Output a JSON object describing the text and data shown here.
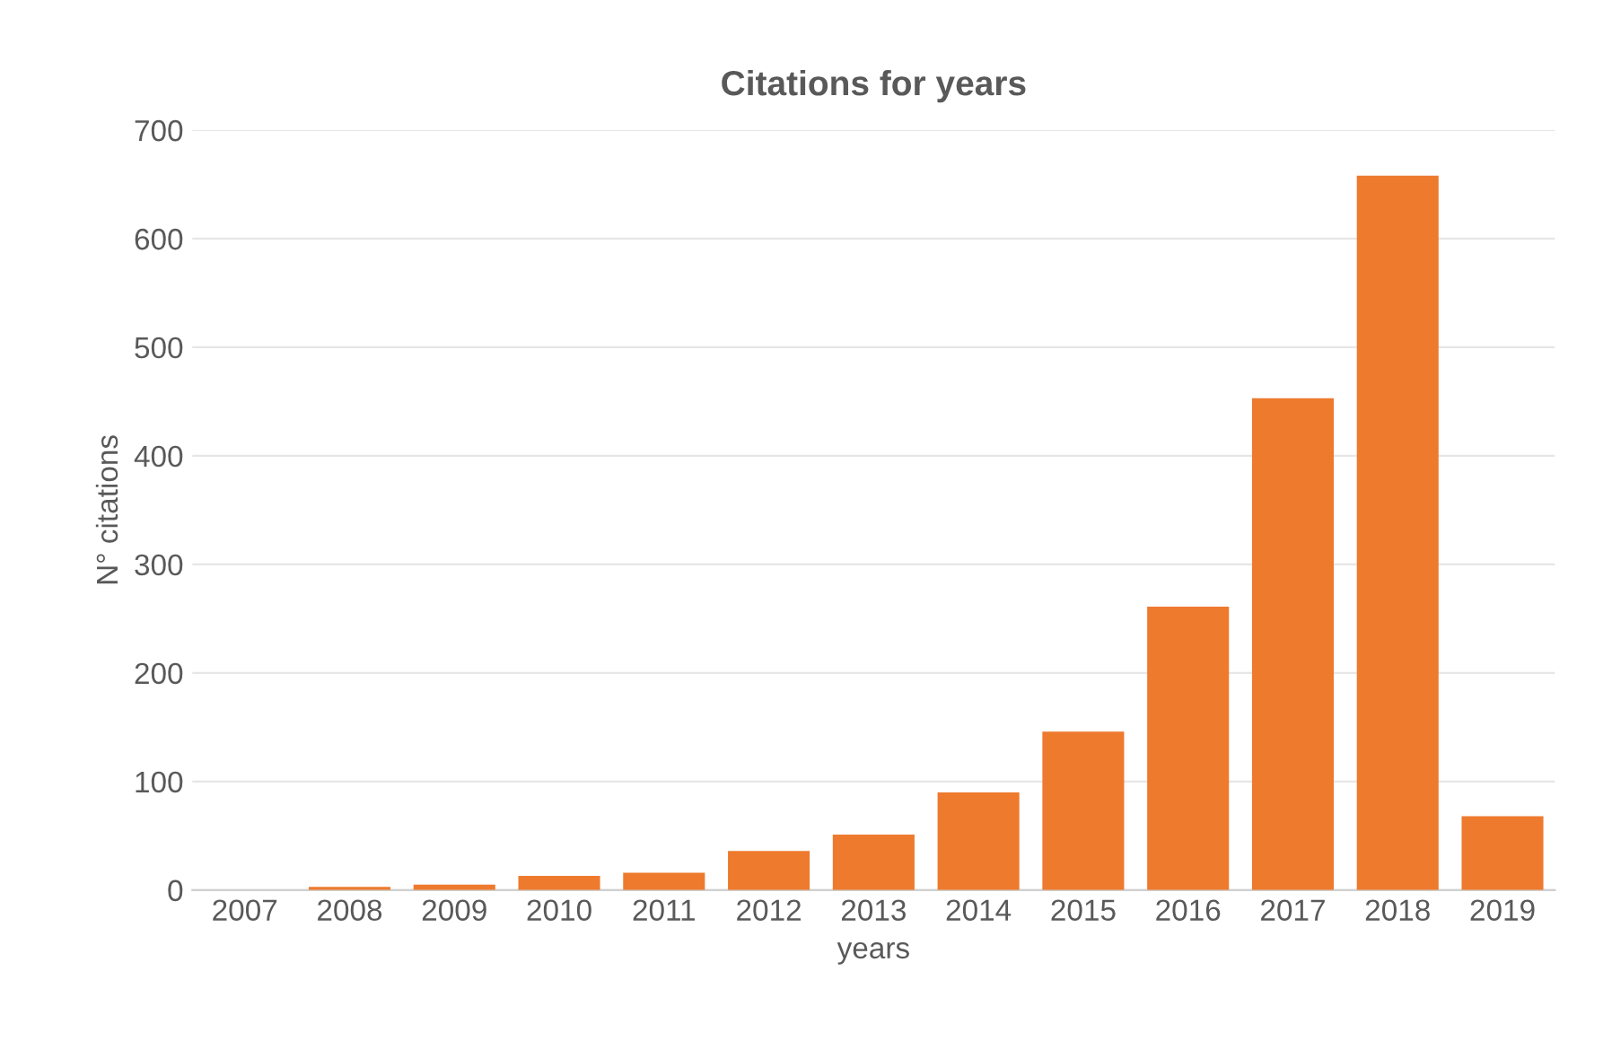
{
  "chart_data": {
    "type": "bar",
    "title": "Citations for years",
    "xlabel": "years",
    "ylabel": "N° citations",
    "categories": [
      "2007",
      "2008",
      "2009",
      "2010",
      "2011",
      "2012",
      "2013",
      "2014",
      "2015",
      "2016",
      "2017",
      "2018",
      "2019"
    ],
    "values": [
      0,
      3,
      5,
      13,
      16,
      36,
      51,
      90,
      146,
      261,
      453,
      658,
      68
    ],
    "color": "#ee7a2e",
    "ylim": [
      0,
      700
    ],
    "yticks": [
      0,
      100,
      200,
      300,
      400,
      500,
      600,
      700
    ],
    "grid": "y",
    "legend": false
  }
}
